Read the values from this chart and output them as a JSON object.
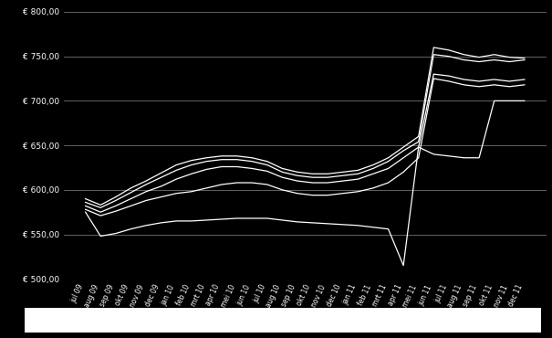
{
  "background_color": "#000000",
  "plot_bg_color": "#000000",
  "line_color": "#ffffff",
  "grid_color": "#888888",
  "text_color": "#ffffff",
  "ylim": [
    500,
    800
  ],
  "yticks": [
    500,
    550,
    600,
    650,
    700,
    750,
    800
  ],
  "ytick_labels": [
    "€ 500,00",
    "€ 550,00",
    "€ 600,00",
    "€ 650,00",
    "€ 700,00",
    "€ 750,00",
    "€ 800,00"
  ],
  "x_labels": [
    "jul 09",
    "aug 09",
    "sep 09",
    "okt 09",
    "nov 09",
    "dec 09",
    "jan 10",
    "feb 10",
    "mrt 10",
    "apr 10",
    "mei 10",
    "jun 10",
    "jul 10",
    "aug 10",
    "sep 10",
    "okt 10",
    "nov 10",
    "dec 10",
    "jan 11",
    "feb 11",
    "mrt 11",
    "apr 11",
    "mei 11",
    "jun 11",
    "jul 11",
    "aug 11",
    "sep 11",
    "okt 11",
    "nov 11",
    "dec 11"
  ],
  "series": [
    [
      575,
      548,
      551,
      556,
      560,
      563,
      565,
      565,
      566,
      567,
      568,
      568,
      568,
      566,
      564,
      563,
      562,
      561,
      560,
      558,
      556,
      515,
      648,
      640,
      638,
      636,
      636,
      700,
      700,
      700
    ],
    [
      578,
      571,
      576,
      582,
      588,
      592,
      596,
      598,
      602,
      606,
      608,
      608,
      606,
      600,
      596,
      594,
      594,
      596,
      598,
      602,
      608,
      620,
      636,
      725,
      722,
      718,
      716,
      718,
      716,
      718
    ],
    [
      582,
      575,
      582,
      590,
      598,
      604,
      612,
      618,
      623,
      626,
      626,
      624,
      621,
      614,
      610,
      608,
      608,
      610,
      612,
      618,
      624,
      636,
      648,
      730,
      728,
      724,
      722,
      724,
      722,
      724
    ],
    [
      586,
      580,
      588,
      597,
      606,
      614,
      622,
      628,
      632,
      634,
      634,
      632,
      628,
      620,
      616,
      614,
      614,
      616,
      618,
      624,
      632,
      644,
      654,
      752,
      750,
      746,
      744,
      746,
      744,
      746
    ],
    [
      590,
      583,
      592,
      602,
      610,
      619,
      628,
      633,
      636,
      638,
      638,
      636,
      632,
      624,
      620,
      618,
      618,
      620,
      622,
      628,
      636,
      648,
      660,
      760,
      757,
      752,
      749,
      752,
      749,
      748
    ]
  ],
  "legend_box_color": "#ffffff"
}
